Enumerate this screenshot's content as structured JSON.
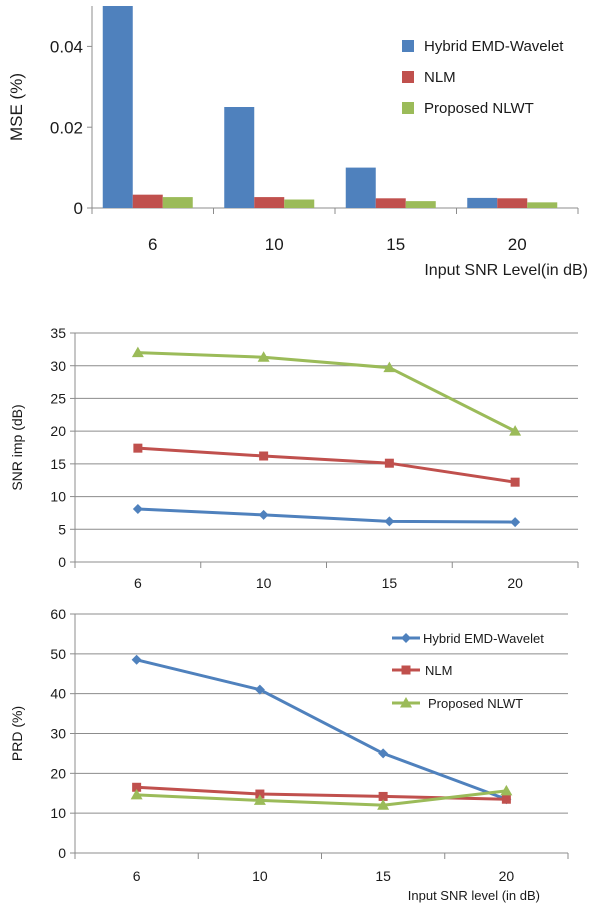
{
  "chart_data": [
    {
      "type": "bar",
      "categories": [
        "6",
        "10",
        "15",
        "20"
      ],
      "series": [
        {
          "name": "Hybrid EMD-Wavelet",
          "values": [
            0.05,
            0.025,
            0.01,
            0.0025
          ]
        },
        {
          "name": "NLM",
          "values": [
            0.0033,
            0.0027,
            0.0024,
            0.0024
          ]
        },
        {
          "name": "Proposed NLWT",
          "values": [
            0.0027,
            0.0021,
            0.0017,
            0.0014
          ]
        }
      ],
      "xlabel": "Input SNR Level(in dB)",
      "ylabel": "MSE (%)",
      "ylim": [
        0,
        0.05
      ],
      "yticks": [
        "0",
        "0.02",
        "0.04"
      ],
      "grid": false,
      "legend": "right"
    },
    {
      "type": "line",
      "categories": [
        "6",
        "10",
        "15",
        "20"
      ],
      "series": [
        {
          "name": "Hybrid EMD-Wavelet",
          "values": [
            8.1,
            7.2,
            6.2,
            6.1
          ]
        },
        {
          "name": "NLM",
          "values": [
            17.4,
            16.2,
            15.1,
            12.2
          ]
        },
        {
          "name": "Proposed NLWT",
          "values": [
            32.0,
            31.3,
            29.7,
            20.0
          ]
        }
      ],
      "xlabel": "",
      "ylabel": "SNR imp (dB)",
      "ylim": [
        0,
        35
      ],
      "yticks": [
        "0",
        "5",
        "10",
        "15",
        "20",
        "25",
        "30",
        "35"
      ],
      "grid": true,
      "legend": "none"
    },
    {
      "type": "line",
      "categories": [
        "6",
        "10",
        "15",
        "20"
      ],
      "series": [
        {
          "name": "Hybrid EMD-Wavelet",
          "values": [
            48.5,
            41.0,
            25.0,
            13.5
          ]
        },
        {
          "name": "NLM",
          "values": [
            16.5,
            14.8,
            14.2,
            13.5
          ]
        },
        {
          "name": "Proposed NLWT",
          "values": [
            14.6,
            13.2,
            12.0,
            15.6
          ]
        }
      ],
      "xlabel": "Input SNR level (in dB)",
      "ylabel": "PRD (%)",
      "ylim": [
        0,
        60
      ],
      "yticks": [
        "0",
        "10",
        "20",
        "30",
        "40",
        "50",
        "60"
      ],
      "grid": true,
      "legend": "top-right"
    }
  ],
  "colors": {
    "series": [
      "#4f81bd",
      "#c0504d",
      "#9bbb59"
    ],
    "axis": "#8c8c8c",
    "grid": "#8c8c8c"
  },
  "markers": [
    "diamond",
    "square",
    "triangle"
  ]
}
